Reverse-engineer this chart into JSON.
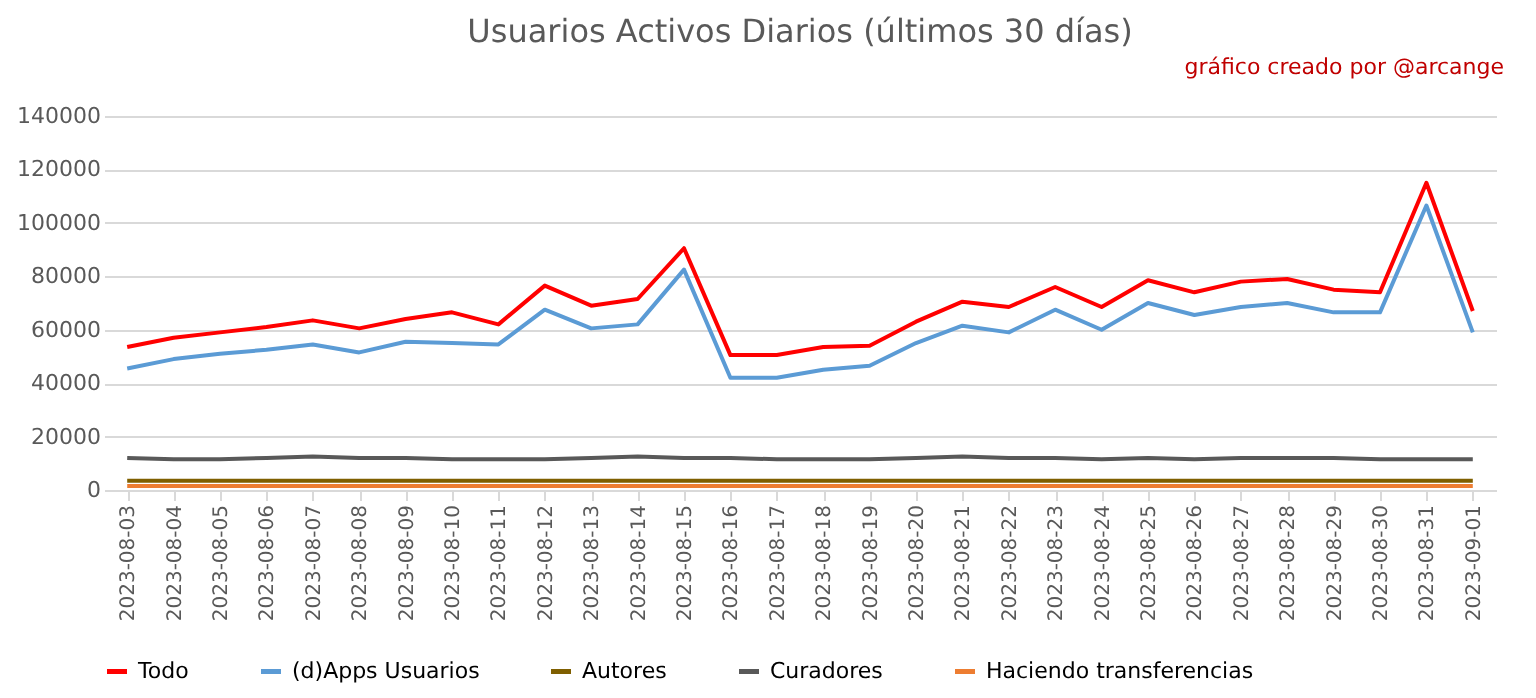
{
  "chart_data": {
    "type": "line",
    "title": "Usuarios Activos Diarios (últimos 30 días)",
    "annotations": [
      "gráfico creado por @arcange"
    ],
    "categories": [
      "2023-08-03",
      "2023-08-04",
      "2023-08-05",
      "2023-08-06",
      "2023-08-07",
      "2023-08-08",
      "2023-08-09",
      "2023-08-10",
      "2023-08-11",
      "2023-08-12",
      "2023-08-13",
      "2023-08-14",
      "2023-08-15",
      "2023-08-16",
      "2023-08-17",
      "2023-08-18",
      "2023-08-19",
      "2023-08-20",
      "2023-08-21",
      "2023-08-22",
      "2023-08-23",
      "2023-08-24",
      "2023-08-25",
      "2023-08-26",
      "2023-08-27",
      "2023-08-28",
      "2023-08-29",
      "2023-08-30",
      "2023-08-31",
      "2023-09-01"
    ],
    "series": [
      {
        "name": "Todo",
        "color": "#ff0000",
        "values": [
          53500,
          57000,
          59000,
          61000,
          63500,
          60500,
          64000,
          66500,
          62000,
          76500,
          69000,
          71500,
          90500,
          50500,
          50500,
          53500,
          54000,
          63000,
          70500,
          68500,
          76000,
          68500,
          78500,
          74000,
          78000,
          79000,
          75000,
          74000,
          115000,
          67000
        ]
      },
      {
        "name": "(d)Apps Usuarios",
        "color": "#5b9bd5",
        "values": [
          45500,
          49000,
          51000,
          52500,
          54500,
          51500,
          55500,
          55000,
          54500,
          67500,
          60500,
          62000,
          82500,
          42000,
          42000,
          45000,
          46500,
          55000,
          61500,
          59000,
          67500,
          60000,
          70000,
          65500,
          68500,
          70000,
          66500,
          66500,
          106500,
          59000
        ]
      },
      {
        "name": "Autores",
        "color": "#7f5f00",
        "values": [
          3500,
          3500,
          3500,
          3500,
          3500,
          3500,
          3500,
          3500,
          3500,
          3500,
          3500,
          3500,
          3500,
          3500,
          3500,
          3500,
          3500,
          3500,
          3500,
          3500,
          3500,
          3500,
          3500,
          3500,
          3500,
          3500,
          3500,
          3500,
          3500,
          3500
        ]
      },
      {
        "name": "Curadores",
        "color": "#595959",
        "values": [
          12000,
          11500,
          11500,
          12000,
          12500,
          12000,
          12000,
          11500,
          11500,
          11500,
          12000,
          12500,
          12000,
          12000,
          11500,
          11500,
          11500,
          12000,
          12500,
          12000,
          12000,
          11500,
          12000,
          11500,
          12000,
          12000,
          12000,
          11500,
          11500,
          11500
        ]
      },
      {
        "name": "Haciendo transferencias",
        "color": "#ed7d31",
        "values": [
          1500,
          1500,
          1500,
          1500,
          1500,
          1500,
          1500,
          1500,
          1500,
          1500,
          1500,
          1500,
          1500,
          1500,
          1500,
          1500,
          1500,
          1500,
          1500,
          1500,
          1500,
          1500,
          1500,
          1500,
          1500,
          1500,
          1500,
          1500,
          1500,
          1500
        ]
      }
    ],
    "ylim": [
      0,
      140000
    ],
    "yticks": [
      0,
      20000,
      40000,
      60000,
      80000,
      100000,
      120000,
      140000
    ],
    "grid": "y",
    "legend": "bottom",
    "line_style": "solid",
    "marker": "none"
  }
}
